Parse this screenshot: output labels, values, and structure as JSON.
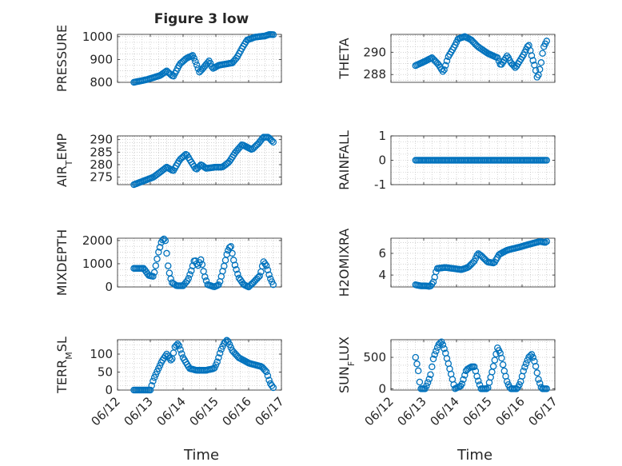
{
  "figure": {
    "title": "Figure 3 low",
    "xlabel": "Time",
    "x_tick_labels": [
      "06/12",
      "06/13",
      "06/14",
      "06/15",
      "06/16",
      "06/17"
    ],
    "marker_color": "#0072bd",
    "marker": "open-circle",
    "grid": "major and minor (dotted)"
  },
  "chart_data": [
    {
      "type": "scatter",
      "ylabel": "PRESSURE",
      "title": "Figure 3 low",
      "xlim": [
        "2018-06-12",
        "2018-06-17"
      ],
      "ylim": [
        800,
        1010
      ],
      "yticks": [
        800,
        900,
        1000
      ],
      "yticklabels": [
        "800",
        "900",
        "1000"
      ],
      "series": [
        {
          "x_start": "2018-06-12 12:00",
          "x_end": "2018-06-16 18:00",
          "keyframes": [
            [
              0,
              800
            ],
            [
              0.4,
              812
            ],
            [
              0.8,
              830
            ],
            [
              1.0,
              850
            ],
            [
              1.2,
              825
            ],
            [
              1.4,
              880
            ],
            [
              1.6,
              905
            ],
            [
              1.8,
              918
            ],
            [
              1.9,
              882
            ],
            [
              2.0,
              845
            ],
            [
              2.1,
              860
            ],
            [
              2.3,
              895
            ],
            [
              2.4,
              860
            ],
            [
              2.6,
              875
            ],
            [
              2.8,
              880
            ],
            [
              3.0,
              885
            ],
            [
              3.15,
              910
            ],
            [
              3.3,
              950
            ],
            [
              3.45,
              985
            ],
            [
              3.7,
              998
            ],
            [
              4.0,
              1003
            ],
            [
              4.15,
              1010
            ],
            [
              4.3,
              1008
            ],
            [
              4.45,
              1005
            ]
          ]
        }
      ]
    },
    {
      "type": "scatter",
      "ylabel": "THETA",
      "xlim": [
        "2018-06-12",
        "2018-06-17"
      ],
      "ylim": [
        287.3,
        291.6
      ],
      "yticks": [
        288,
        290
      ],
      "yticklabels": [
        "288",
        "290"
      ],
      "series": [
        {
          "x_start": "2018-06-12 18:00",
          "x_end": "2018-06-16 18:00",
          "keyframes": [
            [
              0,
              288.8
            ],
            [
              0.3,
              289.2
            ],
            [
              0.5,
              289.5
            ],
            [
              0.7,
              288.9
            ],
            [
              0.85,
              288.2
            ],
            [
              1.0,
              289.6
            ],
            [
              1.2,
              290.6
            ],
            [
              1.3,
              291.2
            ],
            [
              1.5,
              291.4
            ],
            [
              1.7,
              291.1
            ],
            [
              1.9,
              290.5
            ],
            [
              2.2,
              289.9
            ],
            [
              2.5,
              289.5
            ],
            [
              2.6,
              288.8
            ],
            [
              2.8,
              289.7
            ],
            [
              2.9,
              289.1
            ],
            [
              3.05,
              288.6
            ],
            [
              3.3,
              289.8
            ],
            [
              3.45,
              290.7
            ],
            [
              3.55,
              289.6
            ],
            [
              3.65,
              288.6
            ],
            [
              3.72,
              287.6
            ],
            [
              3.82,
              288.8
            ],
            [
              3.9,
              290.4
            ],
            [
              4.0,
              291.0
            ],
            [
              4.08,
              290.2
            ],
            [
              4.12,
              289.2
            ],
            [
              4.2,
              288.7
            ]
          ]
        }
      ]
    },
    {
      "type": "scatter",
      "ylabel": "AIR_TEMP",
      "xlim": [
        "2018-06-12",
        "2018-06-17"
      ],
      "ylim": [
        272,
        291.5
      ],
      "yticks": [
        275,
        280,
        285,
        290
      ],
      "yticklabels": [
        "275",
        "280",
        "285",
        "290"
      ],
      "series": [
        {
          "x_start": "2018-06-12 12:00",
          "x_end": "2018-06-16 18:00",
          "keyframes": [
            [
              0,
              272
            ],
            [
              0.3,
              273.5
            ],
            [
              0.6,
              275
            ],
            [
              0.8,
              277
            ],
            [
              1.0,
              279
            ],
            [
              1.2,
              277.5
            ],
            [
              1.4,
              282
            ],
            [
              1.6,
              284.3
            ],
            [
              1.75,
              281
            ],
            [
              1.9,
              278
            ],
            [
              2.05,
              280
            ],
            [
              2.2,
              278.5
            ],
            [
              2.5,
              279
            ],
            [
              2.7,
              279
            ],
            [
              2.9,
              281
            ],
            [
              3.1,
              285
            ],
            [
              3.3,
              288
            ],
            [
              3.45,
              287
            ],
            [
              3.6,
              286
            ],
            [
              3.8,
              288.5
            ],
            [
              3.95,
              291
            ],
            [
              4.1,
              291
            ],
            [
              4.25,
              289
            ]
          ]
        }
      ]
    },
    {
      "type": "scatter",
      "ylabel": "RAINFALL",
      "xlim": [
        "2018-06-12",
        "2018-06-17"
      ],
      "ylim": [
        -1,
        1
      ],
      "yticks": [
        -1,
        0,
        1
      ],
      "yticklabels": [
        "-1",
        "0",
        "1"
      ],
      "series": [
        {
          "x_start": "2018-06-12 18:00",
          "x_end": "2018-06-16 18:00",
          "keyframes": [
            [
              0,
              0
            ],
            [
              4.0,
              0
            ]
          ]
        }
      ]
    },
    {
      "type": "scatter",
      "ylabel": "MIXDEPTH",
      "xlim": [
        "2018-06-12",
        "2018-06-17"
      ],
      "ylim": [
        0,
        2100
      ],
      "yticks": [
        0,
        1000,
        2000
      ],
      "yticklabels": [
        "0",
        "1000",
        "2000"
      ],
      "series": [
        {
          "x_start": "2018-06-12 12:00",
          "x_end": "2018-06-16 18:00",
          "keyframes": [
            [
              0,
              800
            ],
            [
              0.3,
              800
            ],
            [
              0.45,
              500
            ],
            [
              0.6,
              450
            ],
            [
              0.75,
              1500
            ],
            [
              0.85,
              2000
            ],
            [
              0.95,
              2100
            ],
            [
              1.05,
              800
            ],
            [
              1.15,
              200
            ],
            [
              1.3,
              50
            ],
            [
              1.5,
              50
            ],
            [
              1.65,
              300
            ],
            [
              1.75,
              700
            ],
            [
              1.85,
              1200
            ],
            [
              1.95,
              900
            ],
            [
              2.05,
              1200
            ],
            [
              2.15,
              500
            ],
            [
              2.25,
              100
            ],
            [
              2.45,
              0
            ],
            [
              2.6,
              100
            ],
            [
              2.75,
              900
            ],
            [
              2.85,
              1500
            ],
            [
              2.95,
              1800
            ],
            [
              3.05,
              1100
            ],
            [
              3.2,
              400
            ],
            [
              3.35,
              100
            ],
            [
              3.5,
              0
            ],
            [
              3.65,
              200
            ],
            [
              3.85,
              500
            ],
            [
              3.95,
              1100
            ],
            [
              4.05,
              900
            ],
            [
              4.15,
              400
            ],
            [
              4.25,
              100
            ],
            [
              4.45,
              150
            ]
          ]
        }
      ]
    },
    {
      "type": "scatter",
      "ylabel": "H2OMIXRA",
      "xlim": [
        "2018-06-12",
        "2018-06-17"
      ],
      "ylim": [
        2.9,
        7.4
      ],
      "yticks": [
        4,
        6
      ],
      "yticklabels": [
        "4",
        "6"
      ],
      "series": [
        {
          "x_start": "2018-06-12 18:00",
          "x_end": "2018-06-16 18:00",
          "keyframes": [
            [
              0,
              3.1
            ],
            [
              0.15,
              3.0
            ],
            [
              0.3,
              3.0
            ],
            [
              0.45,
              2.95
            ],
            [
              0.55,
              3.4
            ],
            [
              0.65,
              4.6
            ],
            [
              0.9,
              4.7
            ],
            [
              1.15,
              4.6
            ],
            [
              1.4,
              4.5
            ],
            [
              1.6,
              4.7
            ],
            [
              1.8,
              5.3
            ],
            [
              1.9,
              6.0
            ],
            [
              2.0,
              5.8
            ],
            [
              2.2,
              5.2
            ],
            [
              2.4,
              5.1
            ],
            [
              2.55,
              5.9
            ],
            [
              2.8,
              6.3
            ],
            [
              3.2,
              6.6
            ],
            [
              3.55,
              6.9
            ],
            [
              3.8,
              7.1
            ],
            [
              3.95,
              7.0
            ],
            [
              4.1,
              7.3
            ],
            [
              4.2,
              7.3
            ]
          ]
        }
      ]
    },
    {
      "type": "scatter",
      "ylabel": "TERR_MSL",
      "xlim": [
        "2018-06-12",
        "2018-06-17"
      ],
      "ylim": [
        0,
        140
      ],
      "yticks": [
        0,
        50,
        100
      ],
      "yticklabels": [
        "0",
        "50",
        "100"
      ],
      "series": [
        {
          "x_start": "2018-06-12 12:00",
          "x_end": "2018-06-16 18:00",
          "keyframes": [
            [
              0,
              0
            ],
            [
              0.35,
              0
            ],
            [
              0.5,
              0
            ],
            [
              0.6,
              30
            ],
            [
              0.7,
              50
            ],
            [
              0.85,
              80
            ],
            [
              1.0,
              100
            ],
            [
              1.15,
              80
            ],
            [
              1.25,
              120
            ],
            [
              1.35,
              130
            ],
            [
              1.5,
              90
            ],
            [
              1.7,
              60
            ],
            [
              1.9,
              55
            ],
            [
              2.2,
              55
            ],
            [
              2.45,
              60
            ],
            [
              2.55,
              80
            ],
            [
              2.65,
              110
            ],
            [
              2.75,
              130
            ],
            [
              2.85,
              140
            ],
            [
              3.0,
              110
            ],
            [
              3.2,
              90
            ],
            [
              3.5,
              75
            ],
            [
              3.7,
              70
            ],
            [
              3.9,
              65
            ],
            [
              4.05,
              50
            ],
            [
              4.15,
              20
            ],
            [
              4.3,
              0
            ],
            [
              4.45,
              20
            ]
          ]
        }
      ]
    },
    {
      "type": "scatter",
      "ylabel": "SUN_FLUX",
      "xlim": [
        "2018-06-12",
        "2018-06-17"
      ],
      "ylim": [
        -20,
        780
      ],
      "yticks": [
        0,
        500
      ],
      "yticklabels": [
        "0",
        "500"
      ],
      "series": [
        {
          "x_start": "2018-06-12 18:00",
          "x_end": "2018-06-16 18:00",
          "keyframes": [
            [
              0,
              500
            ],
            [
              0.08,
              300
            ],
            [
              0.15,
              0
            ],
            [
              0.3,
              0
            ],
            [
              0.45,
              200
            ],
            [
              0.55,
              500
            ],
            [
              0.7,
              700
            ],
            [
              0.8,
              750
            ],
            [
              0.9,
              600
            ],
            [
              1.0,
              400
            ],
            [
              1.1,
              200
            ],
            [
              1.2,
              0
            ],
            [
              1.4,
              50
            ],
            [
              1.55,
              300
            ],
            [
              1.7,
              350
            ],
            [
              1.8,
              350
            ],
            [
              1.9,
              150
            ],
            [
              2.0,
              0
            ],
            [
              2.2,
              0
            ],
            [
              2.35,
              300
            ],
            [
              2.5,
              650
            ],
            [
              2.6,
              550
            ],
            [
              2.7,
              300
            ],
            [
              2.8,
              100
            ],
            [
              2.9,
              0
            ],
            [
              3.1,
              0
            ],
            [
              3.2,
              100
            ],
            [
              3.3,
              300
            ],
            [
              3.45,
              500
            ],
            [
              3.55,
              550
            ],
            [
              3.65,
              400
            ],
            [
              3.75,
              150
            ],
            [
              3.85,
              0
            ],
            [
              3.9,
              0
            ]
          ]
        }
      ]
    }
  ]
}
